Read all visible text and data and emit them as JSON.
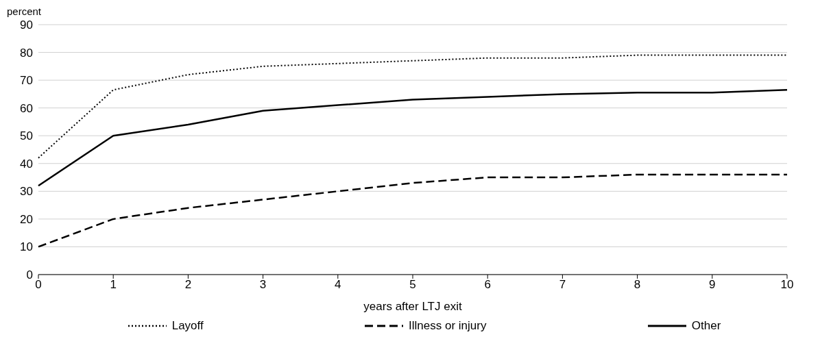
{
  "chart_data": {
    "type": "line",
    "ylabel": "percent",
    "xlabel": "years after LTJ exit",
    "categories": [
      "0",
      "1",
      "2",
      "3",
      "4",
      "5",
      "6",
      "7",
      "8",
      "9",
      "10"
    ],
    "series": [
      {
        "name": "Layoff",
        "color": "#000000",
        "line_style": "dotted",
        "values": [
          42,
          66.5,
          72,
          75,
          76,
          77,
          78,
          78,
          79,
          79,
          79
        ]
      },
      {
        "name": "Illness or injury",
        "color": "#000000",
        "line_style": "dashed",
        "values": [
          10,
          20,
          24,
          27,
          30,
          33,
          35,
          35,
          36,
          36,
          36
        ]
      },
      {
        "name": "Other",
        "color": "#000000",
        "line_style": "solid",
        "values": [
          32,
          50,
          54,
          59,
          61,
          63,
          64,
          65,
          65.5,
          65.5,
          66.5
        ]
      }
    ],
    "ylim": [
      0,
      90
    ],
    "yticks": [
      0,
      10,
      20,
      30,
      40,
      50,
      60,
      70,
      80,
      90
    ],
    "grid": "y",
    "legend": "bottom",
    "marker": "none"
  }
}
